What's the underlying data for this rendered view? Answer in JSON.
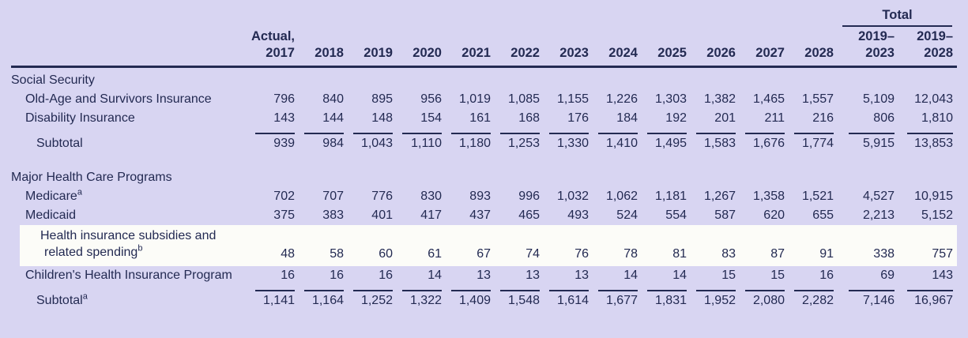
{
  "colors": {
    "background": "#d8d5f2",
    "ink": "#232a52",
    "highlight_row": "#fcfcf8"
  },
  "header": {
    "total_label": "Total",
    "actual_label": "Actual,",
    "years": [
      "2017",
      "2018",
      "2019",
      "2020",
      "2021",
      "2022",
      "2023",
      "2024",
      "2025",
      "2026",
      "2027",
      "2028"
    ],
    "total_columns": [
      {
        "line1": "2019–",
        "line2": "2023"
      },
      {
        "line1": "2019–",
        "line2": "2028"
      }
    ]
  },
  "sections": [
    {
      "title": "Social Security",
      "rows": [
        {
          "label": "Old-Age and Survivors Insurance",
          "sup": "",
          "indent": 1,
          "subtotal": false,
          "highlight": false,
          "values": [
            "796",
            "840",
            "895",
            "956",
            "1,019",
            "1,085",
            "1,155",
            "1,226",
            "1,303",
            "1,382",
            "1,465",
            "1,557",
            "5,109",
            "12,043"
          ]
        },
        {
          "label": "Disability Insurance",
          "sup": "",
          "indent": 1,
          "subtotal": false,
          "highlight": false,
          "values": [
            "143",
            "144",
            "148",
            "154",
            "161",
            "168",
            "176",
            "184",
            "192",
            "201",
            "211",
            "216",
            "806",
            "1,810"
          ]
        },
        {
          "label": "Subtotal",
          "sup": "",
          "indent": 2,
          "subtotal": true,
          "highlight": false,
          "values": [
            "939",
            "984",
            "1,043",
            "1,110",
            "1,180",
            "1,253",
            "1,330",
            "1,410",
            "1,495",
            "1,583",
            "1,676",
            "1,774",
            "5,915",
            "13,853"
          ]
        }
      ]
    },
    {
      "title": "Major Health Care Programs",
      "rows": [
        {
          "label": "Medicare",
          "sup": "a",
          "indent": 1,
          "subtotal": false,
          "highlight": false,
          "values": [
            "702",
            "707",
            "776",
            "830",
            "893",
            "996",
            "1,032",
            "1,062",
            "1,181",
            "1,267",
            "1,358",
            "1,521",
            "4,527",
            "10,915"
          ]
        },
        {
          "label": "Medicaid",
          "sup": "",
          "indent": 1,
          "subtotal": false,
          "highlight": false,
          "values": [
            "375",
            "383",
            "401",
            "417",
            "437",
            "465",
            "493",
            "524",
            "554",
            "587",
            "620",
            "655",
            "2,213",
            "5,152"
          ]
        },
        {
          "label_lines": [
            "Health insurance subsidies and",
            "related spending"
          ],
          "sup": "b",
          "indent": 1,
          "subtotal": false,
          "highlight": true,
          "values": [
            "48",
            "58",
            "60",
            "61",
            "67",
            "74",
            "76",
            "78",
            "81",
            "83",
            "87",
            "91",
            "338",
            "757"
          ]
        },
        {
          "label": "Children's Health Insurance Program",
          "sup": "",
          "indent": 1,
          "subtotal": false,
          "highlight": false,
          "values": [
            "16",
            "16",
            "16",
            "14",
            "13",
            "13",
            "13",
            "14",
            "14",
            "15",
            "15",
            "16",
            "69",
            "143"
          ]
        },
        {
          "label": "Subtotal",
          "sup": "a",
          "indent": 2,
          "subtotal": true,
          "highlight": false,
          "values": [
            "1,141",
            "1,164",
            "1,252",
            "1,322",
            "1,409",
            "1,548",
            "1,614",
            "1,677",
            "1,831",
            "1,952",
            "2,080",
            "2,282",
            "7,146",
            "16,967"
          ]
        }
      ]
    }
  ]
}
